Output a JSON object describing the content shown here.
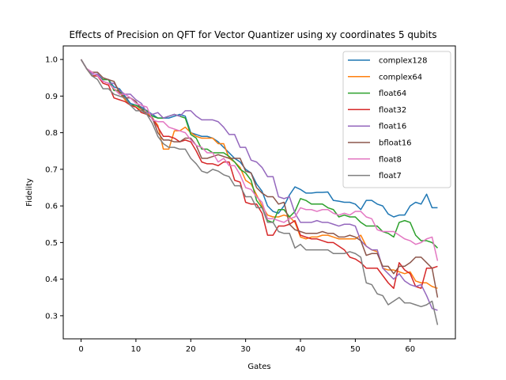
{
  "chart_data": {
    "type": "line",
    "title": "Effects of Precision on QFT for Vector Quantizer using xy coordinates 5 qubits",
    "xlabel": "Gates",
    "ylabel": "Fidelity",
    "xlim": [
      -3.25,
      68.25
    ],
    "ylim": [
      0.237,
      1.037
    ],
    "xticks": [
      0,
      10,
      20,
      30,
      40,
      50,
      60
    ],
    "yticks": [
      0.3,
      0.4,
      0.5,
      0.6,
      0.7,
      0.8,
      0.9,
      1.0
    ],
    "ytick_labels": [
      "0.3",
      "0.4",
      "0.5",
      "0.6",
      "0.7",
      "0.8",
      "0.9",
      "1.0"
    ],
    "grid": false,
    "legend_position": "upper right",
    "x": [
      0,
      1,
      2,
      3,
      4,
      5,
      6,
      7,
      8,
      9,
      10,
      11,
      12,
      13,
      14,
      15,
      16,
      17,
      18,
      19,
      20,
      21,
      22,
      23,
      24,
      25,
      26,
      27,
      28,
      29,
      30,
      31,
      32,
      33,
      34,
      35,
      36,
      37,
      38,
      39,
      40,
      41,
      42,
      43,
      44,
      45,
      46,
      47,
      48,
      49,
      50,
      51,
      52,
      53,
      54,
      55,
      56,
      57,
      58,
      59,
      60,
      61,
      62,
      63,
      64,
      65
    ],
    "series": [
      {
        "name": "complex128",
        "color": "#1f77b4",
        "values": [
          1.0,
          0.975,
          0.96,
          0.96,
          0.945,
          0.945,
          0.925,
          0.92,
          0.9,
          0.88,
          0.875,
          0.87,
          0.86,
          0.85,
          0.84,
          0.84,
          0.84,
          0.845,
          0.85,
          0.845,
          0.8,
          0.795,
          0.79,
          0.79,
          0.785,
          0.775,
          0.76,
          0.745,
          0.73,
          0.72,
          0.7,
          0.69,
          0.66,
          0.64,
          0.6,
          0.585,
          0.58,
          0.6,
          0.63,
          0.652,
          0.645,
          0.635,
          0.635,
          0.637,
          0.637,
          0.638,
          0.615,
          0.613,
          0.61,
          0.61,
          0.605,
          0.59,
          0.615,
          0.615,
          0.605,
          0.6,
          0.578,
          0.57,
          0.575,
          0.575,
          0.6,
          0.61,
          0.605,
          0.632,
          0.595,
          0.595
        ]
      },
      {
        "name": "complex64",
        "color": "#ff7f0e",
        "values": [
          1.0,
          0.975,
          0.955,
          0.955,
          0.94,
          0.935,
          0.92,
          0.91,
          0.89,
          0.875,
          0.87,
          0.86,
          0.855,
          0.84,
          0.82,
          0.755,
          0.755,
          0.805,
          0.805,
          0.815,
          0.8,
          0.79,
          0.785,
          0.785,
          0.785,
          0.77,
          0.77,
          0.73,
          0.72,
          0.705,
          0.67,
          0.66,
          0.63,
          0.6,
          0.575,
          0.57,
          0.57,
          0.575,
          0.57,
          0.555,
          0.515,
          0.51,
          0.515,
          0.515,
          0.52,
          0.52,
          0.515,
          0.51,
          0.51,
          0.51,
          0.51,
          0.52,
          0.49,
          0.48,
          0.475,
          0.43,
          0.425,
          0.425,
          0.42,
          0.415,
          0.42,
          0.395,
          0.39,
          0.39,
          0.38,
          0.375
        ]
      },
      {
        "name": "float64",
        "color": "#2ca02c",
        "values": [
          1.0,
          0.975,
          0.955,
          0.955,
          0.945,
          0.945,
          0.915,
          0.915,
          0.895,
          0.875,
          0.875,
          0.865,
          0.86,
          0.845,
          0.84,
          0.84,
          0.845,
          0.85,
          0.845,
          0.84,
          0.795,
          0.785,
          0.755,
          0.755,
          0.745,
          0.745,
          0.745,
          0.735,
          0.72,
          0.7,
          0.69,
          0.67,
          0.615,
          0.595,
          0.56,
          0.555,
          0.59,
          0.59,
          0.57,
          0.585,
          0.62,
          0.615,
          0.605,
          0.605,
          0.605,
          0.595,
          0.59,
          0.57,
          0.575,
          0.57,
          0.57,
          0.555,
          0.545,
          0.545,
          0.545,
          0.53,
          0.525,
          0.515,
          0.555,
          0.56,
          0.555,
          0.52,
          0.505,
          0.505,
          0.5,
          0.485
        ]
      },
      {
        "name": "float32",
        "color": "#d62728",
        "values": [
          1.0,
          0.975,
          0.955,
          0.955,
          0.935,
          0.93,
          0.895,
          0.89,
          0.885,
          0.875,
          0.87,
          0.855,
          0.85,
          0.84,
          0.815,
          0.79,
          0.79,
          0.785,
          0.775,
          0.78,
          0.775,
          0.75,
          0.72,
          0.715,
          0.715,
          0.71,
          0.72,
          0.72,
          0.67,
          0.665,
          0.61,
          0.605,
          0.605,
          0.58,
          0.52,
          0.52,
          0.545,
          0.545,
          0.55,
          0.56,
          0.52,
          0.515,
          0.51,
          0.51,
          0.505,
          0.5,
          0.5,
          0.49,
          0.48,
          0.46,
          0.455,
          0.445,
          0.43,
          0.43,
          0.43,
          0.41,
          0.39,
          0.375,
          0.445,
          0.425,
          0.415,
          0.38,
          0.375,
          0.43,
          0.43,
          0.435
        ]
      },
      {
        "name": "float16",
        "color": "#9467bd",
        "values": [
          1.0,
          0.975,
          0.96,
          0.96,
          0.94,
          0.935,
          0.935,
          0.915,
          0.905,
          0.905,
          0.89,
          0.88,
          0.855,
          0.85,
          0.855,
          0.84,
          0.845,
          0.85,
          0.845,
          0.86,
          0.86,
          0.845,
          0.835,
          0.835,
          0.835,
          0.83,
          0.815,
          0.795,
          0.795,
          0.76,
          0.76,
          0.725,
          0.72,
          0.705,
          0.68,
          0.68,
          0.625,
          0.62,
          0.625,
          0.58,
          0.555,
          0.555,
          0.555,
          0.56,
          0.555,
          0.555,
          0.55,
          0.545,
          0.55,
          0.55,
          0.545,
          0.505,
          0.49,
          0.48,
          0.48,
          0.43,
          0.415,
          0.4,
          0.415,
          0.395,
          0.385,
          0.38,
          0.385,
          0.355,
          0.32,
          0.315
        ]
      },
      {
        "name": "bfloat16",
        "color": "#8c564b",
        "values": [
          1.0,
          0.975,
          0.965,
          0.965,
          0.95,
          0.945,
          0.94,
          0.91,
          0.895,
          0.895,
          0.885,
          0.865,
          0.85,
          0.84,
          0.8,
          0.78,
          0.78,
          0.775,
          0.775,
          0.785,
          0.785,
          0.765,
          0.73,
          0.73,
          0.735,
          0.74,
          0.735,
          0.73,
          0.73,
          0.73,
          0.695,
          0.69,
          0.65,
          0.635,
          0.625,
          0.625,
          0.605,
          0.61,
          0.55,
          0.535,
          0.53,
          0.525,
          0.525,
          0.525,
          0.53,
          0.525,
          0.525,
          0.515,
          0.515,
          0.52,
          0.515,
          0.505,
          0.465,
          0.47,
          0.47,
          0.435,
          0.435,
          0.415,
          0.435,
          0.435,
          0.445,
          0.46,
          0.46,
          0.445,
          0.43,
          0.35
        ]
      },
      {
        "name": "float8",
        "color": "#e377c2",
        "values": [
          1.0,
          0.975,
          0.965,
          0.955,
          0.94,
          0.935,
          0.92,
          0.905,
          0.905,
          0.895,
          0.88,
          0.875,
          0.87,
          0.835,
          0.83,
          0.83,
          0.815,
          0.81,
          0.805,
          0.8,
          0.78,
          0.765,
          0.76,
          0.745,
          0.745,
          0.72,
          0.73,
          0.71,
          0.71,
          0.685,
          0.65,
          0.645,
          0.625,
          0.61,
          0.565,
          0.565,
          0.56,
          0.555,
          0.565,
          0.57,
          0.595,
          0.59,
          0.59,
          0.585,
          0.59,
          0.59,
          0.58,
          0.575,
          0.58,
          0.575,
          0.585,
          0.585,
          0.57,
          0.565,
          0.535,
          0.53,
          0.53,
          0.53,
          0.52,
          0.51,
          0.505,
          0.495,
          0.5,
          0.51,
          0.515,
          0.45
        ]
      },
      {
        "name": "float7",
        "color": "#7f7f7f",
        "values": [
          1.0,
          0.975,
          0.955,
          0.945,
          0.92,
          0.92,
          0.905,
          0.9,
          0.895,
          0.875,
          0.86,
          0.86,
          0.85,
          0.825,
          0.79,
          0.77,
          0.76,
          0.76,
          0.755,
          0.755,
          0.73,
          0.715,
          0.695,
          0.69,
          0.7,
          0.695,
          0.685,
          0.68,
          0.655,
          0.655,
          0.625,
          0.625,
          0.595,
          0.595,
          0.555,
          0.555,
          0.53,
          0.525,
          0.525,
          0.485,
          0.495,
          0.48,
          0.48,
          0.48,
          0.48,
          0.48,
          0.47,
          0.47,
          0.47,
          0.475,
          0.47,
          0.46,
          0.39,
          0.385,
          0.36,
          0.355,
          0.33,
          0.34,
          0.35,
          0.335,
          0.335,
          0.33,
          0.325,
          0.33,
          0.34,
          0.275
        ]
      }
    ]
  }
}
